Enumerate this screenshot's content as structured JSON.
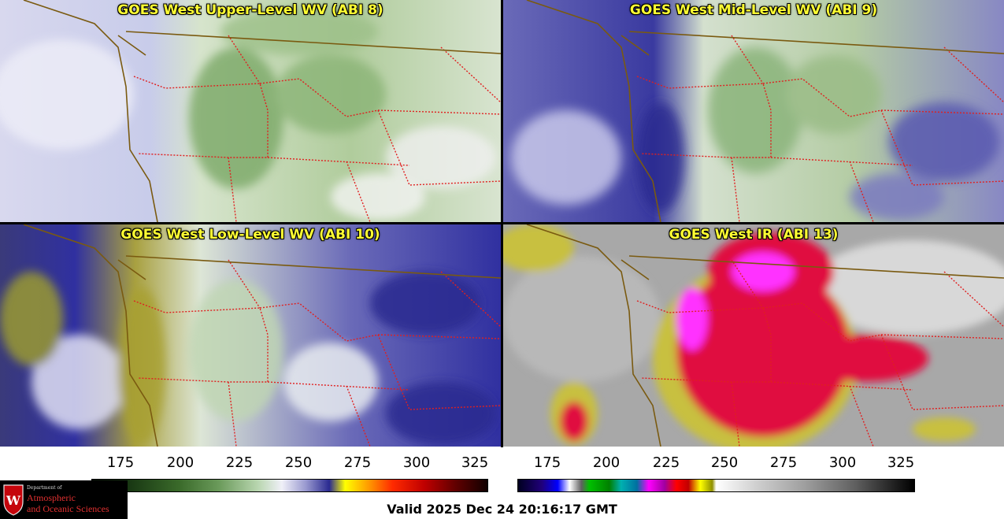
{
  "panels": [
    {
      "title": "GOES West Upper-Level WV (ABI 8)"
    },
    {
      "title": "GOES West Mid-Level WV (ABI 9)"
    },
    {
      "title": "GOES West Low-Level WV (ABI 10)"
    },
    {
      "title": "GOES West IR (ABI 13)"
    }
  ],
  "colorbar_wv": {
    "ticks": [
      "175",
      "200",
      "225",
      "250",
      "275",
      "300",
      "325"
    ]
  },
  "colorbar_ir": {
    "ticks": [
      "175",
      "200",
      "225",
      "250",
      "275",
      "300",
      "325"
    ]
  },
  "valid_time": "Valid 2025 Dec 24 20:16:17 GMT",
  "logo": {
    "department": "Department of",
    "line1": "Atmospheric",
    "line2": "and Oceanic Sciences",
    "crest_letter": "W"
  },
  "colors": {
    "title_text": "#ffff33",
    "state_border": "#e02020",
    "coastline": "#7a5a10"
  }
}
